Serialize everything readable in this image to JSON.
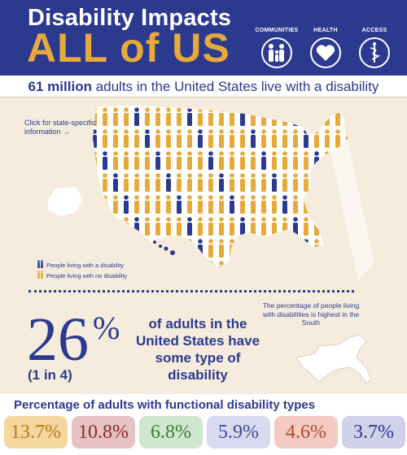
{
  "header": {
    "title_line1": "Disability Impacts",
    "title_line2": "ALL of US",
    "icons": [
      {
        "label": "COMMUNITIES",
        "icon": "people-family-icon"
      },
      {
        "label": "HEALTH",
        "icon": "heart-icon"
      },
      {
        "label": "ACCESS",
        "icon": "caduceus-icon"
      }
    ]
  },
  "subheader": {
    "bold": "61 million",
    "rest": " adults in the United States live with a disability"
  },
  "map": {
    "click_note": "Click for state-specific information →",
    "legend": [
      {
        "label": "People living with a disability",
        "color": "#2b3a8e"
      },
      {
        "label": "People living with no disability",
        "color": "#e8a93b"
      }
    ],
    "south_note": "The percentage of people living with disabilities is highest in the South"
  },
  "stat": {
    "percent": "26",
    "percent_sign": "%",
    "ratio": "(1 in 4)",
    "text": "of adults in the United States have some type of disability"
  },
  "types": {
    "title": "Percentage of adults with functional disability types",
    "items": [
      {
        "value": "13.7%",
        "bg": "#f3d79e",
        "fg": "#b7781a"
      },
      {
        "value": "10.8%",
        "bg": "#e6c2c2",
        "fg": "#8a2b2b"
      },
      {
        "value": "6.8%",
        "bg": "#cfe7cf",
        "fg": "#3d7a3d"
      },
      {
        "value": "5.9%",
        "bg": "#d8dbf0",
        "fg": "#3b4a9a"
      },
      {
        "value": "4.6%",
        "bg": "#f3cbc3",
        "fg": "#b04a34"
      },
      {
        "value": "3.7%",
        "bg": "#cfd2e8",
        "fg": "#2b3a8e"
      }
    ]
  }
}
